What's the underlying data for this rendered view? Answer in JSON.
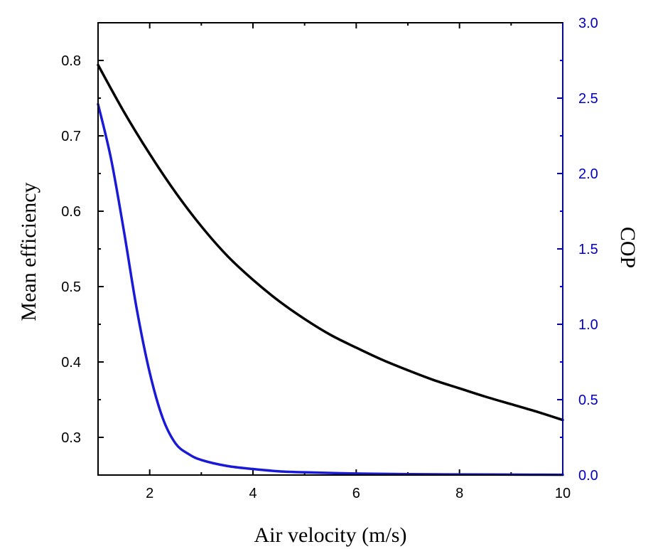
{
  "chart_data": {
    "type": "line",
    "xlabel": "Air velocity (m/s)",
    "ylabel": "Mean efficiency",
    "y2label": "COP",
    "xlim": [
      1,
      10
    ],
    "ylim": [
      0.25,
      0.85
    ],
    "y2lim": [
      0,
      3
    ],
    "xticks": [
      2,
      4,
      6,
      8,
      10
    ],
    "xtick_labels": [
      "2",
      "4",
      "6",
      "8",
      "10"
    ],
    "yticks": [
      0.3,
      0.4,
      0.5,
      0.6,
      0.7,
      0.8
    ],
    "ytick_labels": [
      "0.3",
      "0.4",
      "0.5",
      "0.6",
      "0.7",
      "0.8"
    ],
    "y2ticks": [
      0,
      0.5,
      1,
      1.5,
      2,
      2.5,
      3
    ],
    "y2tick_labels": [
      "0.0",
      "0.5",
      "1.0",
      "1.5",
      "2.0",
      "2.5",
      "3.0"
    ],
    "grid": false,
    "colors": {
      "left_axis": "#000000",
      "right_axis": "#0000cc"
    },
    "series": [
      {
        "axis": "left",
        "color": "#000000",
        "x": [
          1,
          1.5,
          2,
          2.5,
          3,
          3.5,
          4,
          4.5,
          5,
          5.5,
          6,
          6.5,
          7,
          7.5,
          8,
          8.5,
          9,
          9.5,
          10
        ],
        "y": [
          0.794,
          0.732,
          0.676,
          0.625,
          0.58,
          0.541,
          0.509,
          0.481,
          0.457,
          0.436,
          0.419,
          0.403,
          0.389,
          0.376,
          0.365,
          0.354,
          0.344,
          0.334,
          0.323
        ]
      },
      {
        "axis": "right",
        "color": "#1a1ad6",
        "x": [
          1,
          1.25,
          1.5,
          1.75,
          2,
          2.25,
          2.5,
          2.75,
          3,
          3.5,
          4,
          4.5,
          5,
          6,
          7,
          8,
          9,
          10
        ],
        "y": [
          2.46,
          2.1,
          1.62,
          1.1,
          0.68,
          0.38,
          0.21,
          0.14,
          0.1,
          0.06,
          0.04,
          0.025,
          0.018,
          0.01,
          0.006,
          0.004,
          0.003,
          0.002
        ]
      }
    ]
  }
}
